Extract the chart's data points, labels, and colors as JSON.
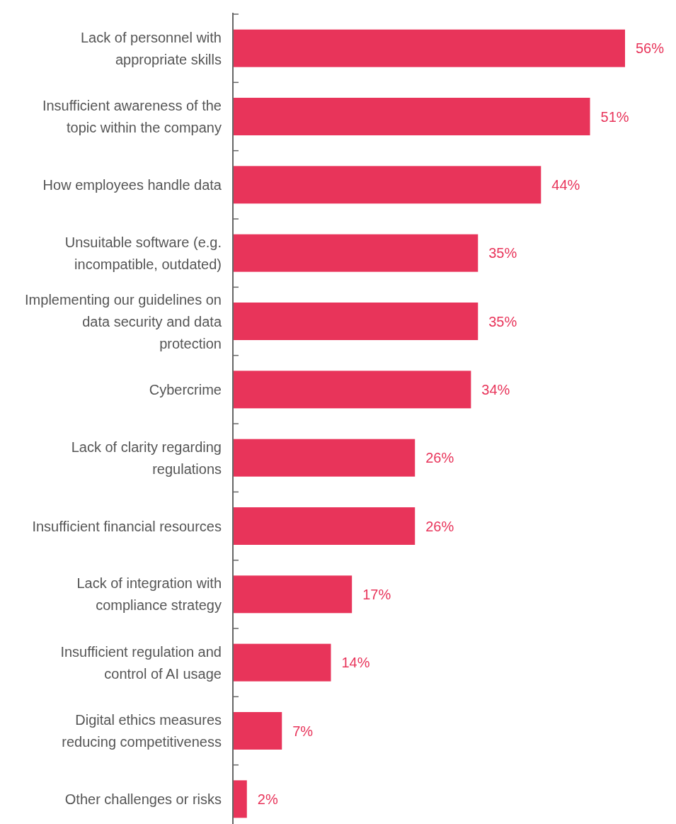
{
  "chart_data": {
    "type": "bar",
    "orientation": "horizontal",
    "categories": [
      "Lack of personnel with appropriate skills",
      "Insufficient awareness of the topic within the company",
      "How employees handle data",
      "Unsuitable software (e.g. incompatible, outdated)",
      "Implementing our guidelines on data security and data protection",
      "Cybercrime",
      "Lack of clarity regarding regulations",
      "Insufficient financial resources",
      "Lack of integration with compliance strategy",
      "Insufficient regulation and control of AI usage",
      "Digital ethics measures reducing competitiveness",
      "Other challenges or risks"
    ],
    "values": [
      56,
      51,
      44,
      35,
      35,
      34,
      26,
      26,
      17,
      14,
      7,
      2
    ],
    "value_labels": [
      "56%",
      "51%",
      "44%",
      "35%",
      "35%",
      "34%",
      "26%",
      "26%",
      "17%",
      "14%",
      "7%",
      "2%"
    ],
    "color": "#e8345a"
  }
}
